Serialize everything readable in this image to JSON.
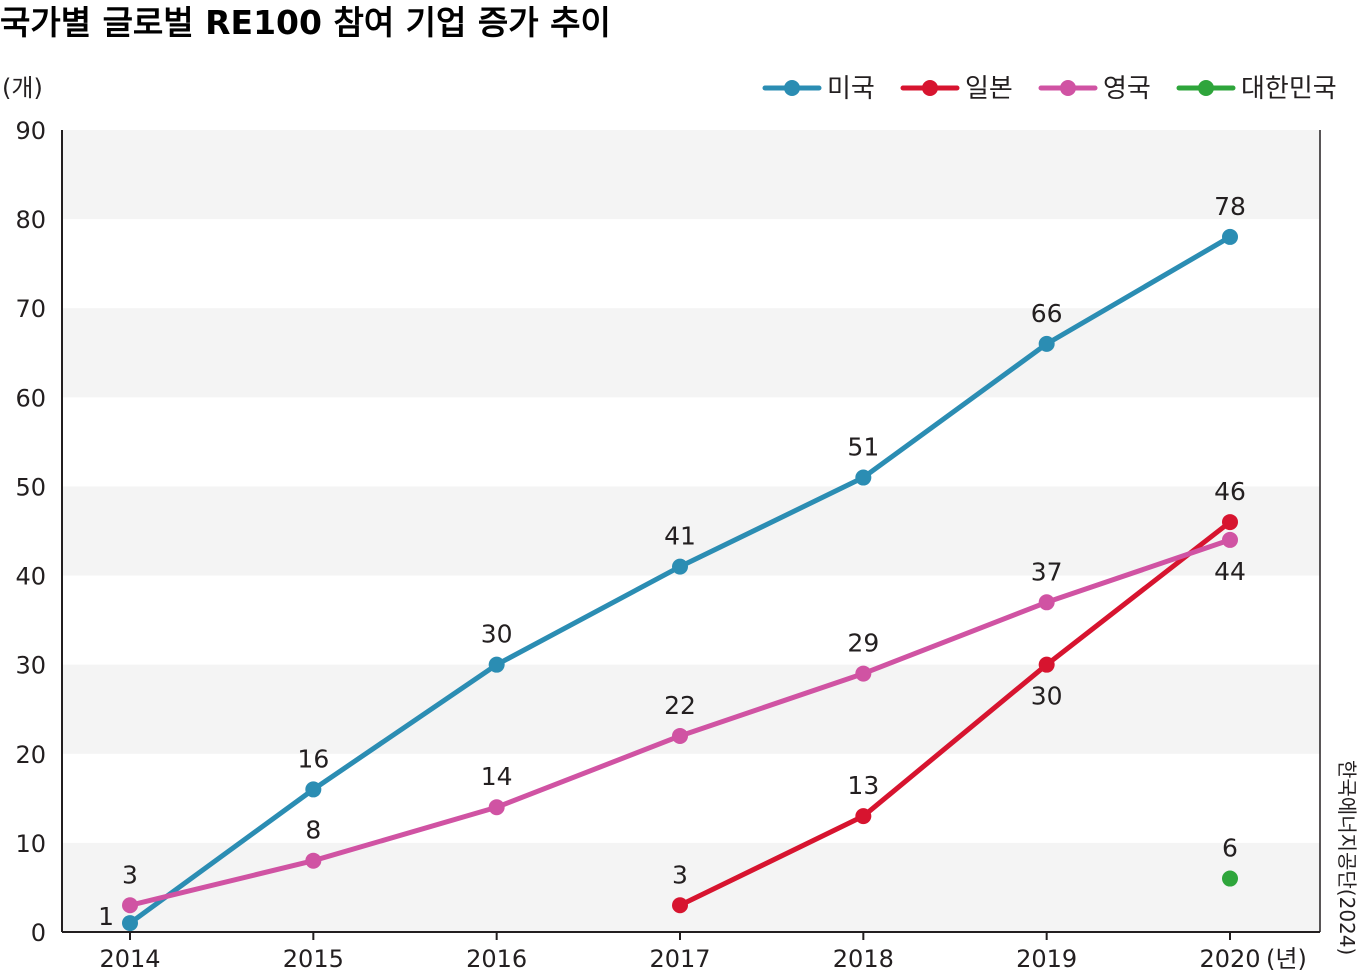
{
  "chart_data": {
    "type": "line",
    "title": "국가별 글로벌 RE100 참여 기업 증가 추이",
    "ylabel": "(개)",
    "xlabel": "(년)",
    "source": "한국에너지공단(2024)",
    "x": [
      "2014",
      "2015",
      "2016",
      "2017",
      "2018",
      "2019",
      "2020"
    ],
    "ylim": [
      0,
      90
    ],
    "yticks": [
      "0",
      "10",
      "20",
      "30",
      "40",
      "50",
      "60",
      "70",
      "80",
      "90"
    ],
    "grid": "alternating horizontal bands",
    "legend": "top-right",
    "series": [
      {
        "name": "미국",
        "color": "#2b8db3",
        "values": [
          1,
          16,
          30,
          41,
          51,
          66,
          78
        ],
        "labels": [
          "1",
          "16",
          "30",
          "41",
          "51",
          "66",
          "78"
        ]
      },
      {
        "name": "일본",
        "color": "#d7142f",
        "values": [
          null,
          null,
          null,
          3,
          13,
          30,
          46
        ],
        "labels": [
          null,
          null,
          null,
          "3",
          "13",
          "30",
          "46"
        ]
      },
      {
        "name": "영국",
        "color": "#d053a3",
        "values": [
          3,
          8,
          14,
          22,
          29,
          37,
          44
        ],
        "labels": [
          "3",
          "8",
          "14",
          "22",
          "29",
          "37",
          "44"
        ]
      },
      {
        "name": "대한민국",
        "color": "#2ea53b",
        "values": [
          null,
          null,
          null,
          null,
          null,
          null,
          6
        ],
        "labels": [
          null,
          null,
          null,
          null,
          null,
          null,
          "6"
        ]
      }
    ]
  }
}
